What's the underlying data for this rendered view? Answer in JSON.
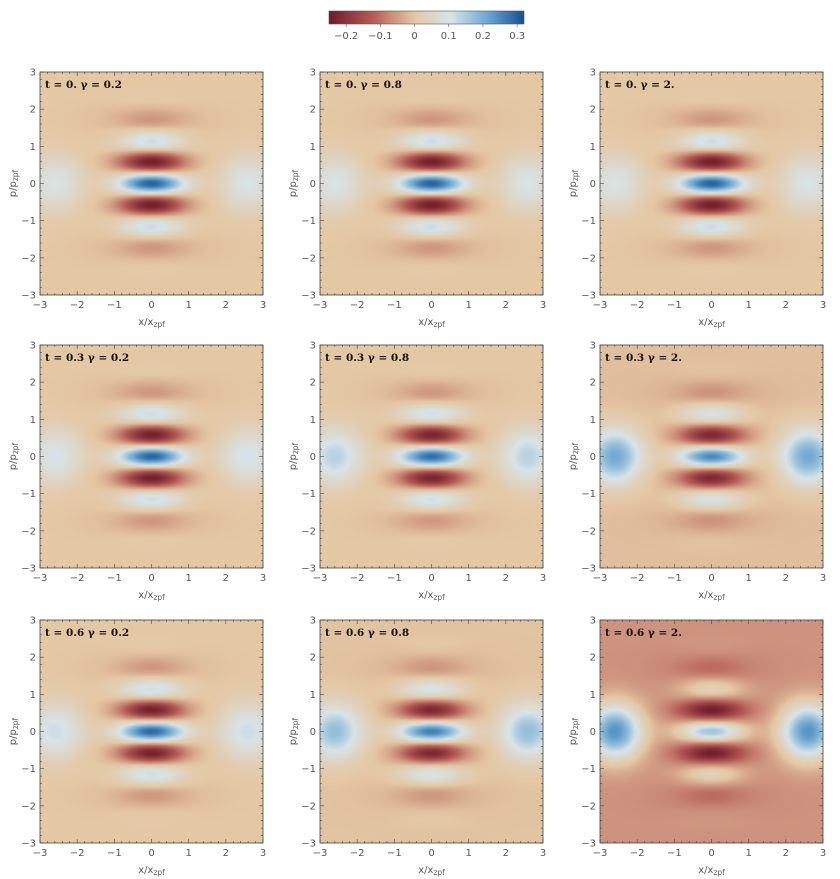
{
  "chart_data": {
    "type": "heatmap",
    "colorbar": {
      "ticks": [
        "−0.2",
        "−0.1",
        "0",
        "0.1",
        "0.2",
        "0.3"
      ],
      "tick_values": [
        -0.2,
        -0.1,
        0,
        0.1,
        0.2,
        0.3
      ],
      "range": [
        -0.25,
        0.32
      ],
      "colors": [
        "#6d1a29",
        "#b45a54",
        "#e4c8a4",
        "#d8e4e8",
        "#6ea8d2",
        "#15508f"
      ]
    },
    "xlabel": "x/x",
    "xlabel_sub": "zpf",
    "ylabel": "p/p",
    "ylabel_sub": "zpf",
    "xlim": [
      -3,
      3
    ],
    "ylim": [
      -3,
      3
    ],
    "ticks": [
      "−3",
      "−2",
      "−1",
      "0",
      "1",
      "2",
      "3"
    ],
    "tick_values": [
      -3,
      -2,
      -1,
      0,
      1,
      2,
      3
    ],
    "panels": [
      {
        "title": "t = 0.   γ = 0.2",
        "t": 0.0,
        "gamma": 0.2,
        "blob_amplitude": 0.1,
        "background": 0.0
      },
      {
        "title": "t = 0.   γ = 0.8",
        "t": 0.0,
        "gamma": 0.8,
        "blob_amplitude": 0.1,
        "background": 0.0
      },
      {
        "title": "t = 0.   γ = 2.",
        "t": 0.0,
        "gamma": 2.0,
        "blob_amplitude": 0.1,
        "background": 0.0
      },
      {
        "title": "t = 0.3   γ = 0.2",
        "t": 0.3,
        "gamma": 0.2,
        "blob_amplitude": 0.11,
        "background": 0.0
      },
      {
        "title": "t = 0.3   γ = 0.8",
        "t": 0.3,
        "gamma": 0.8,
        "blob_amplitude": 0.14,
        "background": 0.0
      },
      {
        "title": "t = 0.3   γ = 2.",
        "t": 0.3,
        "gamma": 2.0,
        "blob_amplitude": 0.22,
        "background": -0.01
      },
      {
        "title": "t = 0.6   γ = 0.2",
        "t": 0.6,
        "gamma": 0.2,
        "blob_amplitude": 0.12,
        "background": 0.0
      },
      {
        "title": "t = 0.6   γ = 0.8",
        "t": 0.6,
        "gamma": 0.8,
        "blob_amplitude": 0.18,
        "background": -0.005
      },
      {
        "title": "t = 0.6   γ = 2.",
        "t": 0.6,
        "gamma": 2.0,
        "blob_amplitude": 0.3,
        "background": -0.06
      }
    ]
  }
}
